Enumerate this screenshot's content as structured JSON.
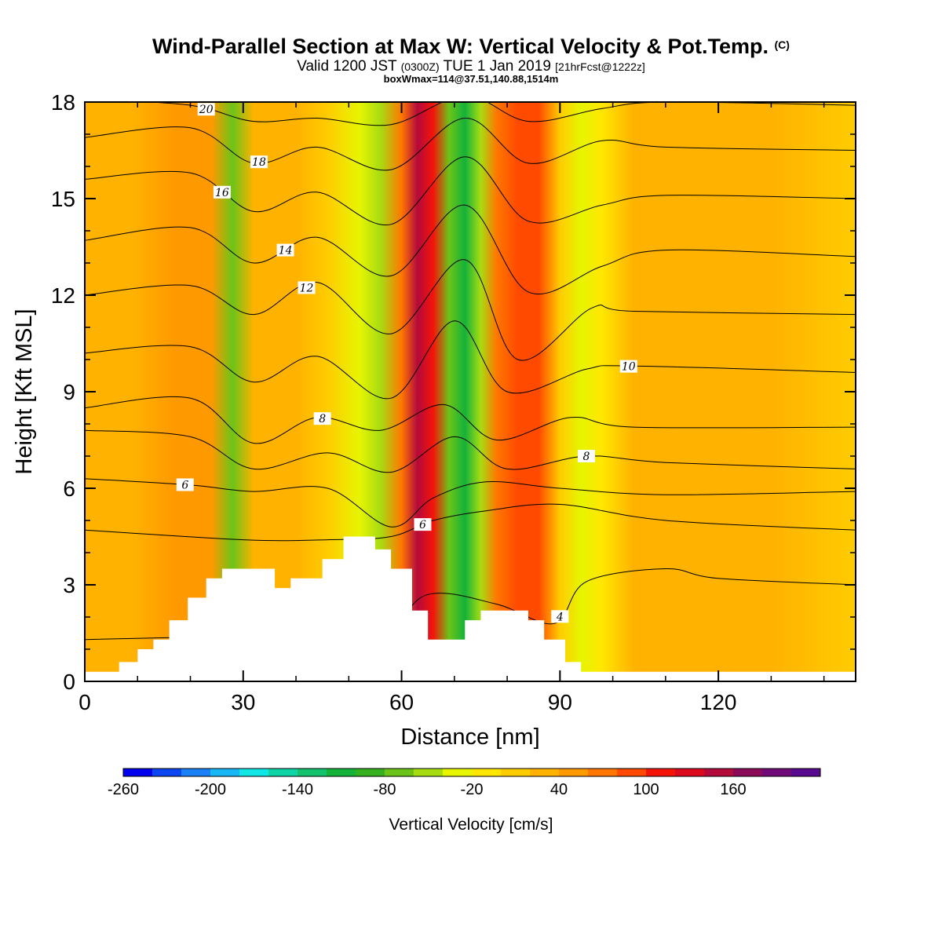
{
  "title": "Wind-Parallel Section at Max W: Vertical Velocity & Pot.Temp.",
  "copyright": "(C)",
  "subtitle_main": "Valid 1200 JST",
  "subtitle_z": "(0300Z)",
  "subtitle_date": "TUE 1 Jan 2019",
  "subtitle_fcst": "[21hrFcst@1222z]",
  "subtitle2": "boxWmax=114@37.51,140.88,1514m",
  "chart_data": {
    "type": "heatmap",
    "xlabel": "Distance [nm]",
    "ylabel": "Height [Kft MSL]",
    "xlim": [
      0,
      146
    ],
    "ylim": [
      0,
      18
    ],
    "x_ticks": [
      "0",
      "30",
      "60",
      "90",
      "120"
    ],
    "y_ticks": [
      "0",
      "3",
      "6",
      "9",
      "12",
      "15",
      "18"
    ],
    "colorbar": {
      "label": "Vertical Velocity [cm/s]",
      "tick_labels": [
        "-260",
        "-200",
        "-140",
        "-80",
        "-20",
        "40",
        "100",
        "160"
      ],
      "colors": [
        "#0000ee",
        "#0b46f0",
        "#1a80f5",
        "#18b6f5",
        "#10e6e6",
        "#0fd4a6",
        "#13c26c",
        "#14b23a",
        "#34b020",
        "#6cc418",
        "#a8dc12",
        "#e6f500",
        "#ffe600",
        "#ffcc00",
        "#ffb200",
        "#ff9900",
        "#ff7700",
        "#ff4a00",
        "#f5140a",
        "#dc0a1e",
        "#b40a3c",
        "#8c0a5a",
        "#700a78",
        "#580a90"
      ]
    },
    "wmax_columns": [
      {
        "x": 0,
        "w": 10
      },
      {
        "x": 9,
        "w": 25
      },
      {
        "x": 17,
        "w": 35
      },
      {
        "x": 24,
        "w": 45
      },
      {
        "x": 28,
        "w": -90
      },
      {
        "x": 32,
        "w": 20
      },
      {
        "x": 40,
        "w": 10
      },
      {
        "x": 46,
        "w": 5
      },
      {
        "x": 52,
        "w": -40
      },
      {
        "x": 56,
        "w": -70
      },
      {
        "x": 60,
        "w": 60
      },
      {
        "x": 63,
        "w": 140
      },
      {
        "x": 66,
        "w": 90
      },
      {
        "x": 69,
        "w": -90
      },
      {
        "x": 72,
        "w": -130
      },
      {
        "x": 75,
        "w": -60
      },
      {
        "x": 78,
        "w": 60
      },
      {
        "x": 82,
        "w": 70
      },
      {
        "x": 86,
        "w": 70
      },
      {
        "x": 90,
        "w": 5
      },
      {
        "x": 94,
        "w": -50
      },
      {
        "x": 98,
        "w": -20
      },
      {
        "x": 104,
        "w": 20
      },
      {
        "x": 112,
        "w": 25
      },
      {
        "x": 120,
        "w": 15
      },
      {
        "x": 130,
        "w": 10
      },
      {
        "x": 146,
        "w": 8
      }
    ],
    "terrain_kft": [
      {
        "x": 0,
        "h": 0.3
      },
      {
        "x": 6.5,
        "h": 0.6
      },
      {
        "x": 10,
        "h": 1.0
      },
      {
        "x": 13,
        "h": 1.3
      },
      {
        "x": 16,
        "h": 1.9
      },
      {
        "x": 19.5,
        "h": 2.6
      },
      {
        "x": 23,
        "h": 3.2
      },
      {
        "x": 26,
        "h": 3.5
      },
      {
        "x": 36,
        "h": 2.9
      },
      {
        "x": 39,
        "h": 3.2
      },
      {
        "x": 45,
        "h": 3.8
      },
      {
        "x": 49,
        "h": 4.5
      },
      {
        "x": 55,
        "h": 4.1
      },
      {
        "x": 58,
        "h": 3.5
      },
      {
        "x": 62,
        "h": 2.2
      },
      {
        "x": 65,
        "h": 1.3
      },
      {
        "x": 72,
        "h": 1.9
      },
      {
        "x": 75,
        "h": 2.2
      },
      {
        "x": 84,
        "h": 1.9
      },
      {
        "x": 87,
        "h": 1.3
      },
      {
        "x": 91,
        "h": 0.6
      },
      {
        "x": 94,
        "h": 0.3
      },
      {
        "x": 146,
        "h": 0.3
      }
    ],
    "theta_contours": [
      {
        "label": "4",
        "label_x": 90,
        "ctrl": [
          [
            0,
            1.3
          ],
          [
            28,
            1.4
          ],
          [
            55,
            1.5
          ],
          [
            65,
            2.7
          ],
          [
            78,
            2.4
          ],
          [
            89,
            1.8
          ],
          [
            95,
            3.1
          ],
          [
            110,
            3.5
          ],
          [
            120,
            3.2
          ],
          [
            146,
            3.0
          ]
        ]
      },
      {
        "label": "6",
        "label_x": 19,
        "ctrl": [
          [
            0,
            6.3
          ],
          [
            20,
            6.1
          ],
          [
            32,
            5.9
          ],
          [
            46,
            6.0
          ],
          [
            58,
            4.8
          ],
          [
            66,
            5.7
          ],
          [
            76,
            6.2
          ],
          [
            90,
            6.0
          ],
          [
            110,
            5.8
          ],
          [
            146,
            5.9
          ]
        ]
      },
      {
        "label": "6",
        "label_x": 64,
        "ctrl": [
          [
            0,
            4.7
          ],
          [
            30,
            4.4
          ],
          [
            46,
            4.4
          ],
          [
            58,
            4.5
          ],
          [
            66,
            5.0
          ],
          [
            76,
            5.3
          ],
          [
            90,
            5.5
          ],
          [
            110,
            5.0
          ],
          [
            146,
            4.7
          ]
        ]
      },
      {
        "label": "8",
        "label_x": 45,
        "ctrl": [
          [
            0,
            8.5
          ],
          [
            20,
            8.8
          ],
          [
            32,
            7.4
          ],
          [
            44,
            8.2
          ],
          [
            56,
            7.8
          ],
          [
            68,
            8.6
          ],
          [
            78,
            7.5
          ],
          [
            92,
            8.2
          ],
          [
            104,
            7.9
          ],
          [
            146,
            7.9
          ]
        ]
      },
      {
        "label": "8",
        "label_x": 95,
        "ctrl": [
          [
            0,
            7.8
          ],
          [
            20,
            7.6
          ],
          [
            32,
            6.6
          ],
          [
            46,
            7.1
          ],
          [
            58,
            6.5
          ],
          [
            70,
            7.6
          ],
          [
            80,
            6.6
          ],
          [
            95,
            7.0
          ],
          [
            110,
            6.8
          ],
          [
            146,
            6.6
          ]
        ]
      },
      {
        "label": "10",
        "label_x": 103,
        "ctrl": [
          [
            0,
            10.2
          ],
          [
            20,
            10.4
          ],
          [
            32,
            9.3
          ],
          [
            44,
            10.1
          ],
          [
            58,
            8.8
          ],
          [
            70,
            11.2
          ],
          [
            80,
            9.0
          ],
          [
            95,
            9.7
          ],
          [
            104,
            9.8
          ],
          [
            146,
            9.6
          ]
        ]
      },
      {
        "label": "12",
        "label_x": 42,
        "ctrl": [
          [
            0,
            12.0
          ],
          [
            20,
            12.3
          ],
          [
            32,
            11.4
          ],
          [
            44,
            12.4
          ],
          [
            58,
            10.8
          ],
          [
            72,
            13.1
          ],
          [
            82,
            10.0
          ],
          [
            96,
            11.6
          ],
          [
            104,
            11.5
          ],
          [
            146,
            11.4
          ]
        ]
      },
      {
        "label": "14",
        "label_x": 38,
        "ctrl": [
          [
            0,
            13.7
          ],
          [
            20,
            14.1
          ],
          [
            32,
            13.0
          ],
          [
            44,
            13.8
          ],
          [
            58,
            12.6
          ],
          [
            72,
            14.8
          ],
          [
            84,
            12.1
          ],
          [
            98,
            12.9
          ],
          [
            110,
            13.4
          ],
          [
            146,
            13.2
          ]
        ]
      },
      {
        "label": "16",
        "label_x": 26,
        "ctrl": [
          [
            0,
            15.6
          ],
          [
            20,
            15.8
          ],
          [
            32,
            14.6
          ],
          [
            44,
            15.2
          ],
          [
            58,
            14.2
          ],
          [
            72,
            16.3
          ],
          [
            84,
            14.3
          ],
          [
            98,
            14.8
          ],
          [
            110,
            15.1
          ],
          [
            146,
            15.0
          ]
        ]
      },
      {
        "label": "18",
        "label_x": 33,
        "ctrl": [
          [
            0,
            16.9
          ],
          [
            20,
            17.2
          ],
          [
            32,
            16.1
          ],
          [
            44,
            16.6
          ],
          [
            58,
            15.9
          ],
          [
            72,
            17.5
          ],
          [
            84,
            16.1
          ],
          [
            98,
            16.8
          ],
          [
            110,
            16.6
          ],
          [
            146,
            16.5
          ]
        ]
      },
      {
        "label": "20",
        "label_x": 23,
        "ctrl": [
          [
            0,
            18.1
          ],
          [
            20,
            17.9
          ],
          [
            32,
            17.4
          ],
          [
            44,
            17.5
          ],
          [
            58,
            17.3
          ],
          [
            72,
            18.2
          ],
          [
            84,
            17.4
          ],
          [
            98,
            17.8
          ],
          [
            110,
            18.0
          ],
          [
            146,
            17.9
          ]
        ]
      }
    ]
  }
}
